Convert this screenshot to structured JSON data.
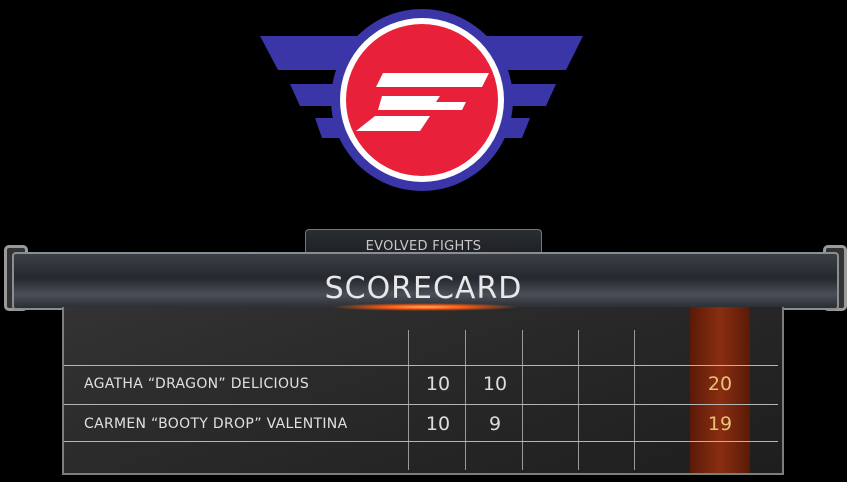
{
  "logo": {
    "text": "EF",
    "colors": {
      "blue": "#3a36a8",
      "white": "#ffffff",
      "red": "#e8203a"
    }
  },
  "header": {
    "tab_label": "EVOLVED FIGHTS",
    "title": "SCORECARD"
  },
  "scorecard": {
    "accent": "#e8c27a",
    "rows": [
      {
        "name": "AGATHA “DRAGON” DELICIOUS",
        "rounds": [
          "10",
          "10",
          "",
          "",
          ""
        ],
        "total": "20"
      },
      {
        "name": "CARMEN “BOOTY DROP” VALENTINA",
        "rounds": [
          "10",
          "9",
          "",
          "",
          ""
        ],
        "total": "19"
      }
    ]
  }
}
